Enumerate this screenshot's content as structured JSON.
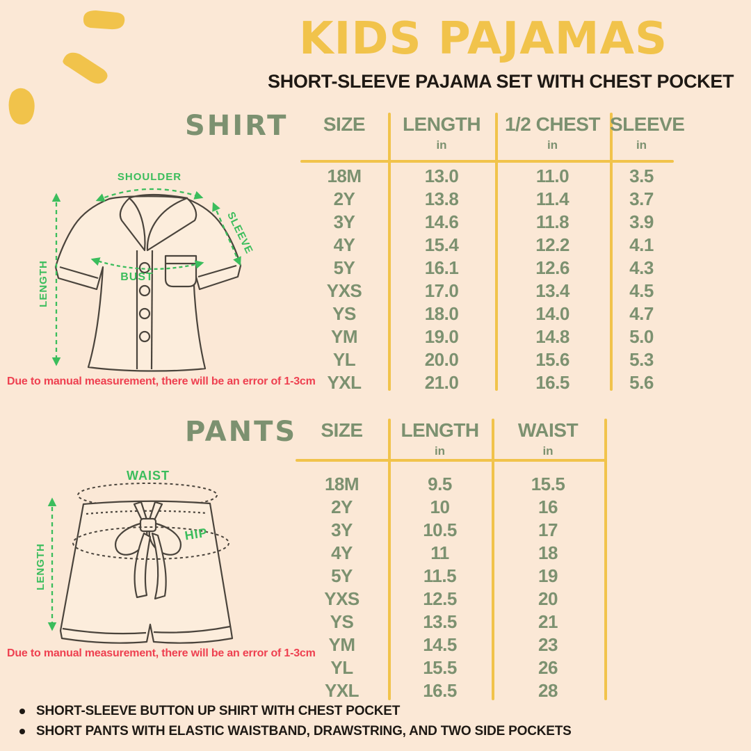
{
  "colors": {
    "background": "#FBE8D6",
    "accent_yellow": "#F1C34B",
    "table_green": "#7C9170",
    "annotation_green": "#3BBD5C",
    "alert_red": "#EE4050",
    "text_dark": "#1E1914"
  },
  "header": {
    "title": "KIDS PAJAMAS",
    "subtitle": "SHORT-SLEEVE PAJAMA SET WITH CHEST POCKET"
  },
  "shirt_section": {
    "label": "SHIRT",
    "diagram": {
      "shoulder_label": "SHOULDER",
      "sleeve_label": "SLEEVE",
      "length_label": "LENGTH",
      "bust_label": "BUST"
    },
    "disclaimer": "Due to manual measurement, there will be an error of 1-3cm",
    "table": {
      "columns": [
        {
          "label": "SIZE",
          "unit": ""
        },
        {
          "label": "LENGTH",
          "unit": "in"
        },
        {
          "label": "1/2 CHEST",
          "unit": "in"
        },
        {
          "label": "SLEEVE",
          "unit": "in"
        }
      ],
      "rows": [
        [
          "18M",
          "13.0",
          "11.0",
          "3.5"
        ],
        [
          "2Y",
          "13.8",
          "11.4",
          "3.7"
        ],
        [
          "3Y",
          "14.6",
          "11.8",
          "3.9"
        ],
        [
          "4Y",
          "15.4",
          "12.2",
          "4.1"
        ],
        [
          "5Y",
          "16.1",
          "12.6",
          "4.3"
        ],
        [
          "YXS",
          "17.0",
          "13.4",
          "4.5"
        ],
        [
          "YS",
          "18.0",
          "14.0",
          "4.7"
        ],
        [
          "YM",
          "19.0",
          "14.8",
          "5.0"
        ],
        [
          "YL",
          "20.0",
          "15.6",
          "5.3"
        ],
        [
          "YXL",
          "21.0",
          "16.5",
          "5.6"
        ]
      ]
    }
  },
  "pants_section": {
    "label": "PANTS",
    "diagram": {
      "waist_label": "WAIST",
      "hip_label": "HIP",
      "length_label": "LENGTH"
    },
    "disclaimer": "Due to manual measurement, there will be an error of 1-3cm",
    "table": {
      "columns": [
        {
          "label": "SIZE",
          "unit": ""
        },
        {
          "label": "LENGTH",
          "unit": "in"
        },
        {
          "label": "WAIST",
          "unit": "in"
        }
      ],
      "rows": [
        [
          "18M",
          "9.5",
          "15.5"
        ],
        [
          "2Y",
          "10",
          "16"
        ],
        [
          "3Y",
          "10.5",
          "17"
        ],
        [
          "4Y",
          "11",
          "18"
        ],
        [
          "5Y",
          "11.5",
          "19"
        ],
        [
          "YXS",
          "12.5",
          "20"
        ],
        [
          "YS",
          "13.5",
          "21"
        ],
        [
          "YM",
          "14.5",
          "23"
        ],
        [
          "YL",
          "15.5",
          "26"
        ],
        [
          "YXL",
          "16.5",
          "28"
        ]
      ]
    }
  },
  "footer": {
    "bullets": [
      "SHORT-SLEEVE BUTTON UP SHIRT WITH CHEST POCKET",
      "SHORT PANTS WITH ELASTIC WAISTBAND, DRAWSTRING, AND TWO SIDE POCKETS"
    ]
  }
}
